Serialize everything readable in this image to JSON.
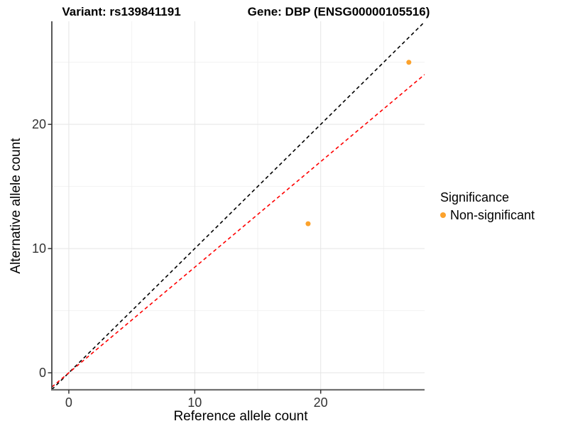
{
  "chart_data": {
    "type": "scatter",
    "title_left": "Variant: rs139841191",
    "title_right": "Gene: DBP (ENSG00000105516)",
    "xlabel": "Reference allele count",
    "ylabel": "Alternative allele count",
    "x": {
      "ticks": [
        0,
        10,
        20
      ],
      "minor_ticks": [
        5,
        15,
        25
      ],
      "lim": [
        -1.35,
        28.25
      ]
    },
    "y": {
      "ticks": [
        0,
        10,
        20
      ],
      "minor_ticks": [
        5,
        15,
        25
      ],
      "lim": [
        -1.37,
        28.3
      ]
    },
    "series": [
      {
        "name": "Non-significant",
        "color": "#FCA22C",
        "points": [
          {
            "x": 19,
            "y": 12
          },
          {
            "x": 27,
            "y": 25
          }
        ]
      }
    ],
    "lines": [
      {
        "name": "identity-line",
        "color": "#000000",
        "dash": true,
        "slope": 1,
        "intercept": 0
      },
      {
        "name": "fit-line",
        "color": "#FF0000",
        "dash": true,
        "slope": 0.85,
        "intercept": 0
      }
    ],
    "legend": {
      "title": "Significance",
      "items": [
        {
          "label": "Non-significant",
          "color": "#FCA22C"
        }
      ],
      "position": "right"
    },
    "grid": {
      "major_color": "#E5E5E5",
      "minor_color": "#F2F2F2",
      "on": true
    },
    "axis_line_color_left": "#2E2E2E",
    "axis_line_color_bottom": "#707070",
    "tick_color": "#333333"
  }
}
